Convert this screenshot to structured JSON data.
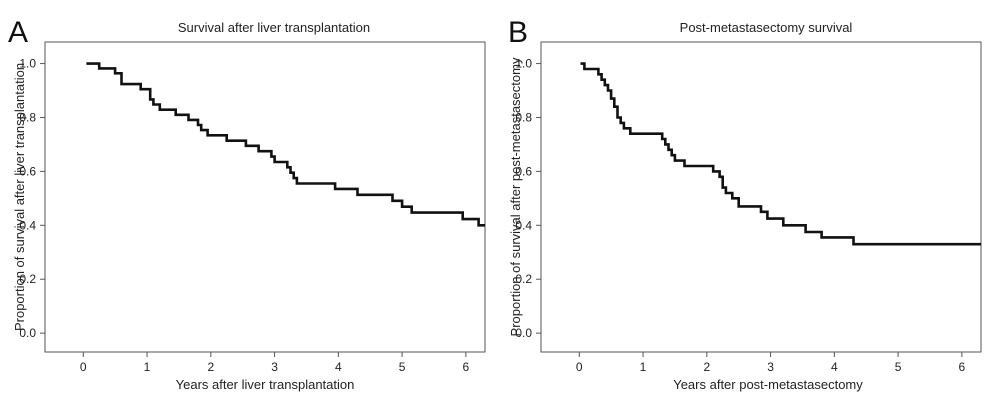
{
  "chart_data": [
    {
      "type": "line",
      "panel_label": "A",
      "title": "Survival after liver transplantation",
      "xlabel": "Years after liver transplantation",
      "ylabel": "Proportion of survival after liver transplantation",
      "xlim": [
        -0.6,
        6.3
      ],
      "ylim": [
        -0.07,
        1.08
      ],
      "xticks": [
        0,
        1,
        2,
        3,
        4,
        5,
        6
      ],
      "yticks": [
        0.0,
        0.2,
        0.4,
        0.6,
        0.8,
        1.0
      ],
      "grid": false,
      "series": [
        {
          "color": "#111111",
          "x": [
            0.05,
            0.25,
            0.5,
            0.6,
            0.9,
            1.05,
            1.1,
            1.2,
            1.45,
            1.65,
            1.8,
            1.85,
            1.95,
            2.25,
            2.55,
            2.75,
            2.95,
            3.0,
            3.2,
            3.25,
            3.3,
            3.35,
            3.95,
            4.3,
            4.85,
            5.0,
            5.15,
            5.95,
            6.2,
            6.3
          ],
          "y": [
            1.0,
            0.982,
            0.964,
            0.924,
            0.905,
            0.867,
            0.848,
            0.829,
            0.81,
            0.791,
            0.772,
            0.753,
            0.734,
            0.714,
            0.695,
            0.675,
            0.655,
            0.635,
            0.615,
            0.595,
            0.575,
            0.555,
            0.535,
            0.513,
            0.491,
            0.469,
            0.447,
            0.423,
            0.4,
            0.4
          ]
        }
      ]
    },
    {
      "type": "line",
      "panel_label": "B",
      "title": "Post-metastasectomy survival",
      "xlabel": "Years after post-metastasectomy",
      "ylabel": "Proportion of survival after post-metastasectomy",
      "xlim": [
        -0.6,
        6.3
      ],
      "ylim": [
        -0.07,
        1.08
      ],
      "xticks": [
        0,
        1,
        2,
        3,
        4,
        5,
        6
      ],
      "yticks": [
        0.0,
        0.2,
        0.4,
        0.6,
        0.8,
        1.0
      ],
      "grid": false,
      "series": [
        {
          "color": "#111111",
          "x": [
            0.02,
            0.08,
            0.3,
            0.35,
            0.4,
            0.45,
            0.5,
            0.55,
            0.6,
            0.65,
            0.7,
            0.8,
            0.95,
            1.3,
            1.35,
            1.4,
            1.45,
            1.5,
            1.65,
            2.1,
            2.2,
            2.25,
            2.3,
            2.4,
            2.5,
            2.85,
            2.95,
            3.2,
            3.55,
            3.8,
            4.3,
            6.3
          ],
          "y": [
            1.0,
            0.98,
            0.96,
            0.94,
            0.92,
            0.9,
            0.87,
            0.84,
            0.8,
            0.78,
            0.76,
            0.74,
            0.74,
            0.72,
            0.7,
            0.68,
            0.66,
            0.64,
            0.62,
            0.6,
            0.58,
            0.54,
            0.52,
            0.5,
            0.47,
            0.45,
            0.425,
            0.4,
            0.375,
            0.355,
            0.33,
            0.33
          ]
        }
      ]
    }
  ]
}
